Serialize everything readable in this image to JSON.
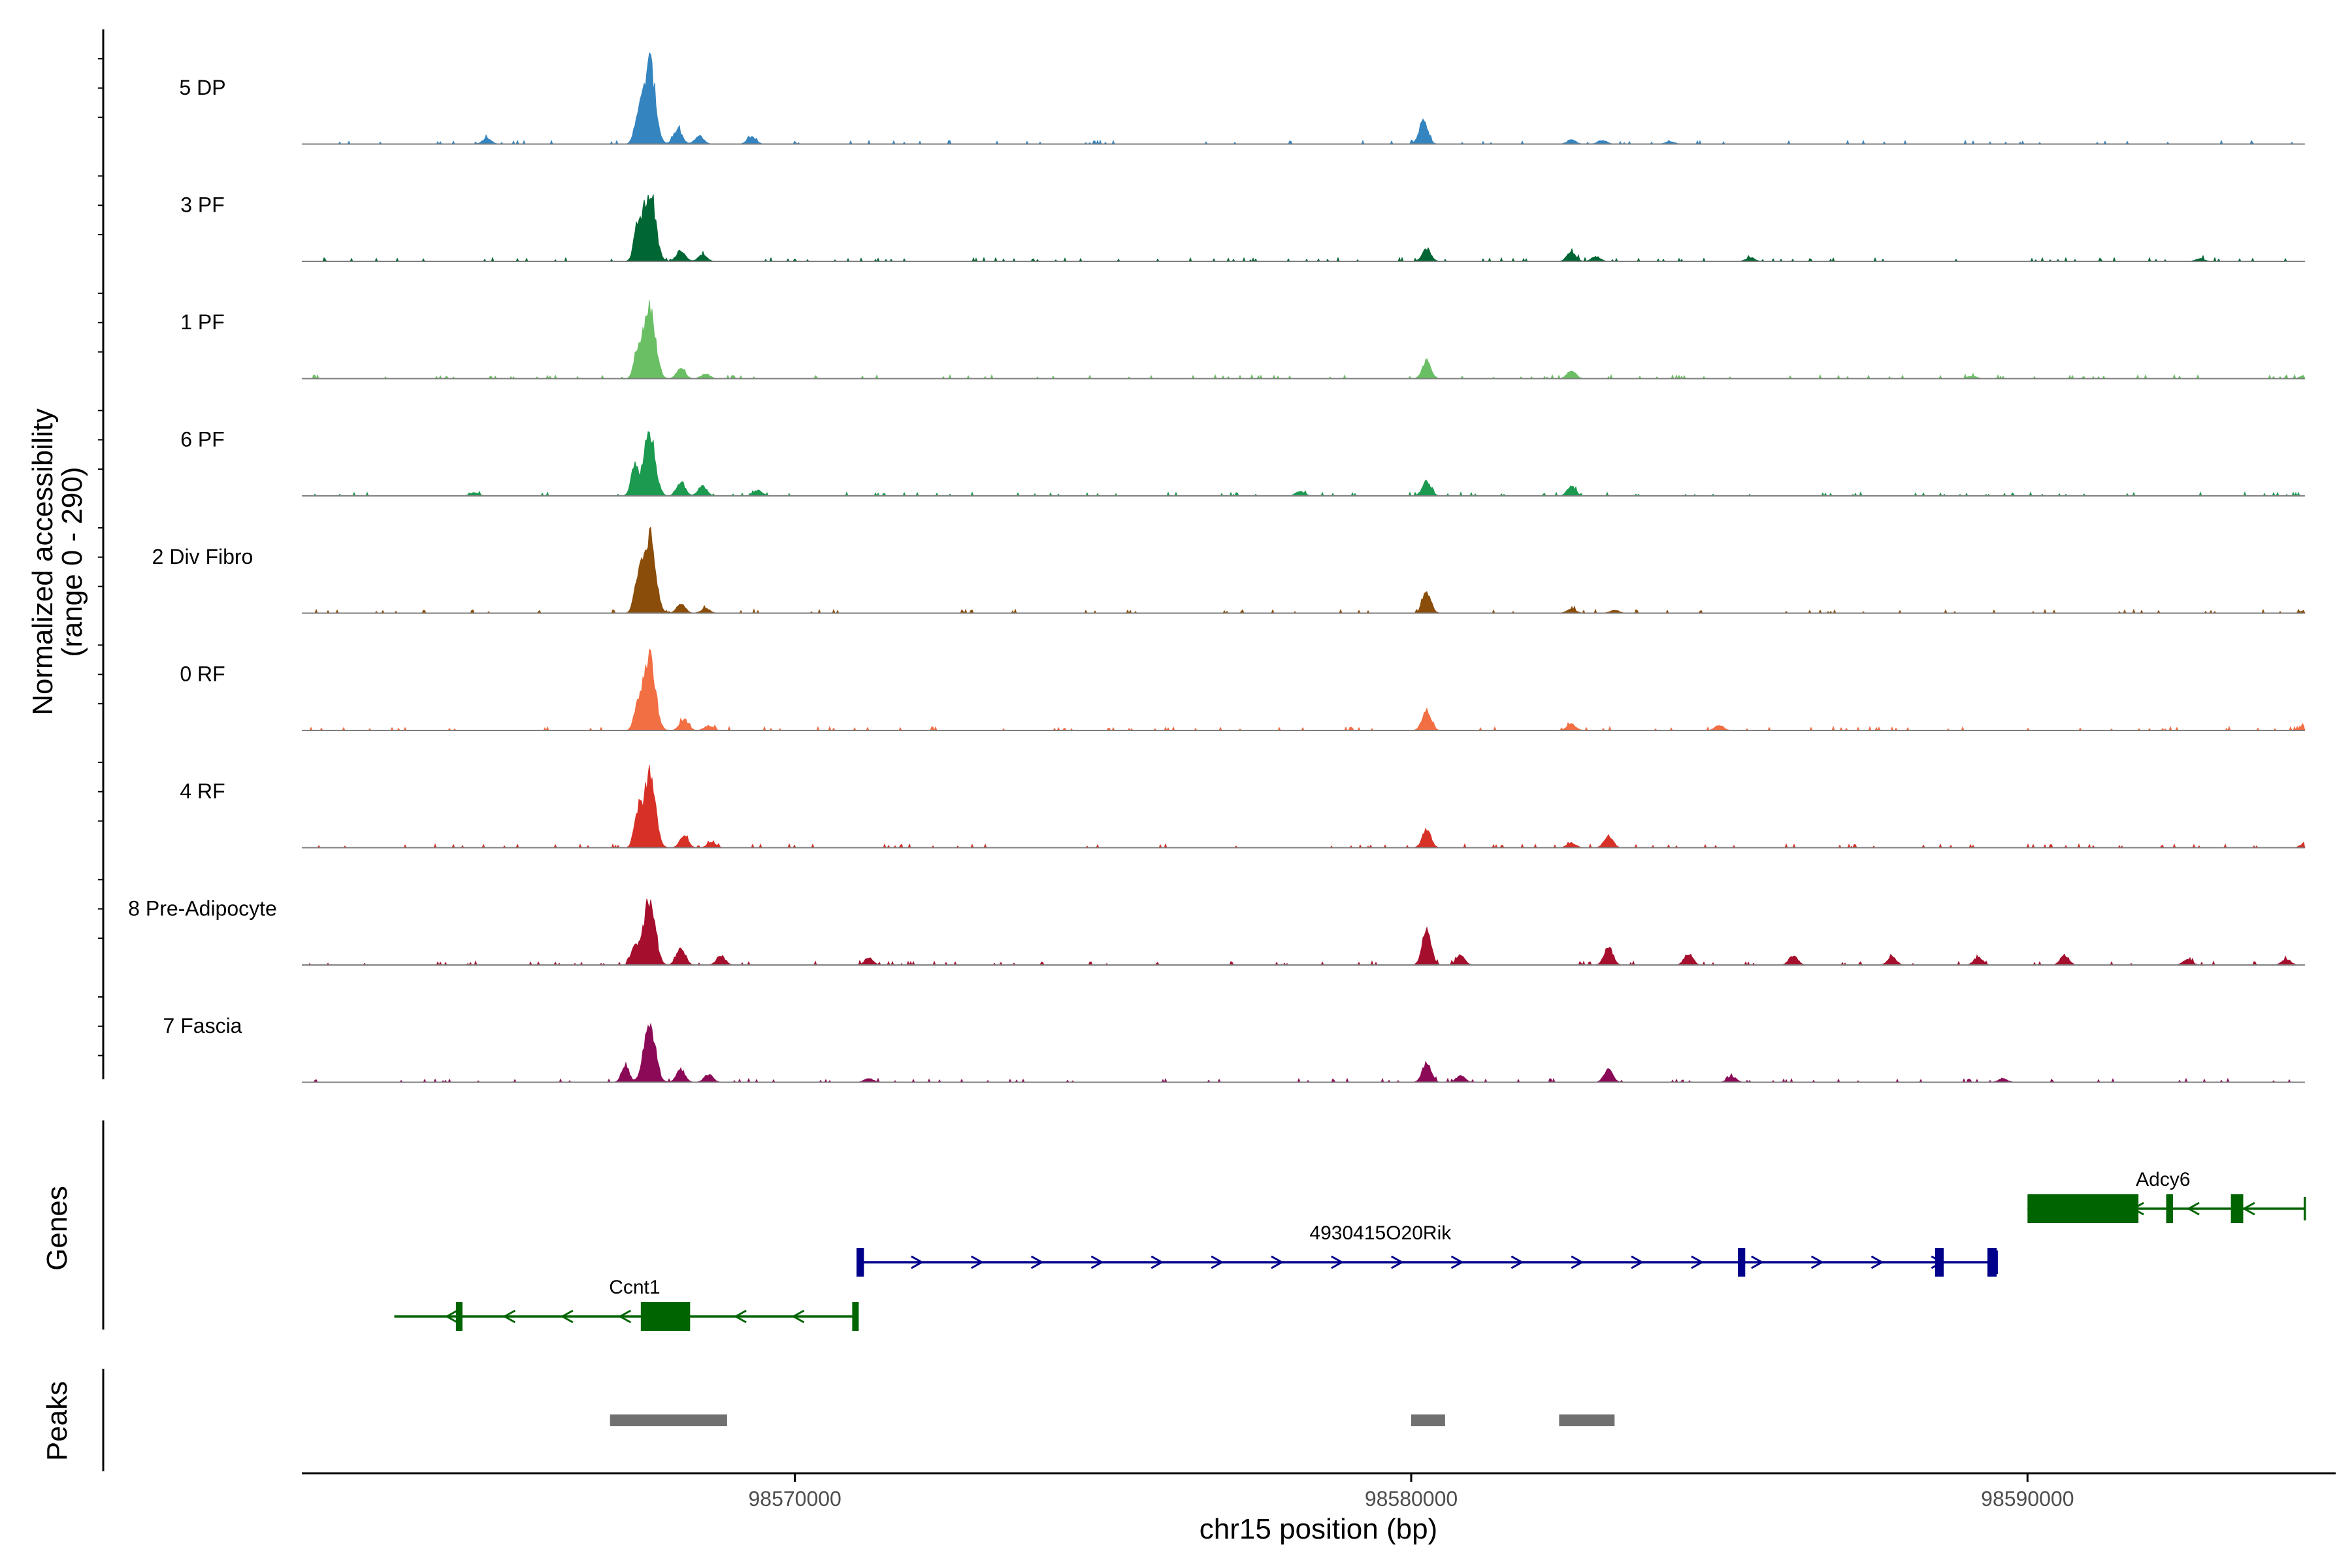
{
  "chart_data": {
    "type": "area",
    "region": {
      "chrom": "chr15",
      "start": 98562000,
      "end": 98595000
    },
    "ylabel_line1": "Normalized accessibility",
    "ylabel_line2": "(range 0 - 290)",
    "ylim": [
      0,
      290
    ],
    "xlabel": "chr15 position (bp)",
    "xticks": [
      {
        "value": 98570000,
        "label": "98570000"
      },
      {
        "value": 98580000,
        "label": "98580000"
      },
      {
        "value": 98590000,
        "label": "98590000"
      }
    ],
    "genes_label": "Genes",
    "peaks_label": "Peaks",
    "series": [
      {
        "name": "5 DP",
        "color": "#3484c0",
        "peaks": [
          [
            98567450,
            80,
            "narrow"
          ],
          [
            98567640,
            260,
            "main"
          ],
          [
            98568100,
            45
          ],
          [
            98568450,
            25
          ],
          [
            98569300,
            22
          ],
          [
            98565000,
            18
          ],
          [
            98580200,
            75
          ],
          [
            98582600,
            14
          ],
          [
            98583100,
            12
          ],
          [
            98584200,
            8
          ]
        ]
      },
      {
        "name": "3 PF",
        "color": "#006633",
        "peaks": [
          [
            98567450,
            110,
            "narrow"
          ],
          [
            98567640,
            230,
            "main"
          ],
          [
            98568150,
            35
          ],
          [
            98568500,
            20
          ],
          [
            98580250,
            40
          ],
          [
            98582600,
            30
          ],
          [
            98583000,
            15
          ],
          [
            98585500,
            12
          ],
          [
            98592800,
            8
          ]
        ]
      },
      {
        "name": "1 PF",
        "color": "#6abf64",
        "peaks": [
          [
            98567450,
            85,
            "narrow"
          ],
          [
            98567640,
            230,
            "main"
          ],
          [
            98568150,
            30
          ],
          [
            98568550,
            15
          ],
          [
            98580250,
            55
          ],
          [
            98582600,
            25
          ],
          [
            98589100,
            8
          ],
          [
            98594500,
            10
          ]
        ]
      },
      {
        "name": "6 PF",
        "color": "#1c9a50",
        "peaks": [
          [
            98567400,
            90,
            "narrow"
          ],
          [
            98567640,
            205,
            "main"
          ],
          [
            98568150,
            45
          ],
          [
            98568500,
            30
          ],
          [
            98569400,
            18
          ],
          [
            98564800,
            10
          ],
          [
            98578200,
            15
          ],
          [
            98580250,
            45
          ],
          [
            98582600,
            30
          ]
        ]
      },
      {
        "name": "2 Div Fibro",
        "color": "#8a4d0a",
        "peaks": [
          [
            98567450,
            110,
            "narrow"
          ],
          [
            98567640,
            255,
            "main"
          ],
          [
            98568150,
            30
          ],
          [
            98568550,
            15
          ],
          [
            98580250,
            65
          ],
          [
            98582600,
            15
          ],
          [
            98583300,
            10
          ],
          [
            98594500,
            8
          ]
        ]
      },
      {
        "name": "0 RF",
        "color": "#f26e43",
        "peaks": [
          [
            98567450,
            75,
            "narrow"
          ],
          [
            98567640,
            240,
            "main"
          ],
          [
            98568200,
            35
          ],
          [
            98568600,
            15
          ],
          [
            98580250,
            65
          ],
          [
            98582600,
            20
          ],
          [
            98585000,
            15
          ],
          [
            98594500,
            14
          ]
        ]
      },
      {
        "name": "4 RF",
        "color": "#d73027",
        "peaks": [
          [
            98567450,
            100,
            "narrow"
          ],
          [
            98567640,
            230,
            "main"
          ],
          [
            98568200,
            35
          ],
          [
            98568650,
            18
          ],
          [
            98580250,
            55
          ],
          [
            98583200,
            40
          ],
          [
            98582600,
            15
          ],
          [
            98594500,
            14
          ]
        ]
      },
      {
        "name": "8 Pre-Adipocyte",
        "color": "#a50f2d",
        "peaks": [
          [
            98567400,
            60,
            "narrow"
          ],
          [
            98567640,
            210,
            "main"
          ],
          [
            98568150,
            55
          ],
          [
            98568800,
            30
          ],
          [
            98571200,
            22
          ],
          [
            98580250,
            115
          ],
          [
            98580800,
            30
          ],
          [
            98583200,
            60
          ],
          [
            98584500,
            35
          ],
          [
            98586200,
            30
          ],
          [
            98587800,
            25
          ],
          [
            98589200,
            25
          ],
          [
            98590600,
            30
          ],
          [
            98592600,
            20
          ],
          [
            98594200,
            18
          ]
        ]
      },
      {
        "name": "7 Fascia",
        "color": "#8b0a57",
        "peaks": [
          [
            98567250,
            55,
            "narrow"
          ],
          [
            98567640,
            190,
            "main"
          ],
          [
            98568150,
            40
          ],
          [
            98568600,
            25
          ],
          [
            98571200,
            12
          ],
          [
            98580250,
            60
          ],
          [
            98580800,
            20
          ],
          [
            98583200,
            40
          ],
          [
            98585200,
            18
          ],
          [
            98589600,
            12
          ]
        ]
      }
    ],
    "genes": [
      {
        "name": "Ccnt1",
        "strand": "-",
        "color": "#006400",
        "start": 98563500,
        "end": 98571000,
        "label_pos": 98567400,
        "row": 2,
        "exons": [
          [
            98564500,
            98564570
          ],
          [
            98567500,
            98568300
          ],
          [
            98570930,
            98571000
          ]
        ]
      },
      {
        "name": "4930415O20Rik",
        "strand": "+",
        "color": "#00008b",
        "start": 98571000,
        "end": 98589500,
        "label_pos": 98579500,
        "row": 1,
        "exons": [
          [
            98571000,
            98571120
          ],
          [
            98585300,
            98585420
          ],
          [
            98588500,
            98588640
          ],
          [
            98589350,
            98589500
          ]
        ]
      },
      {
        "name": "Adcy6",
        "strand": "-",
        "color": "#006400",
        "start": 98590000,
        "end": 98594500,
        "label_pos": 98592200,
        "row": 0,
        "exons": [
          [
            98590000,
            98591800
          ],
          [
            98592250,
            98592360
          ],
          [
            98593300,
            98593500
          ]
        ]
      }
    ],
    "peak_regions": [
      [
        98567000,
        98568900
      ],
      [
        98580000,
        98580550
      ],
      [
        98582400,
        98583300
      ]
    ]
  }
}
